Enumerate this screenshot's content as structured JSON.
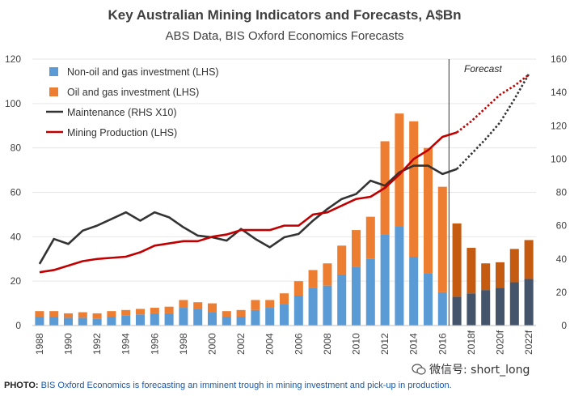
{
  "chart_data": {
    "type": "bar",
    "title": "Key Australian Mining Indicators and Forecasts, A$Bn",
    "subtitle": "ABS Data, BIS Oxford Economics Forecasts",
    "forecast_label": "Forecast",
    "forecast_start_index": 29,
    "categories": [
      "1988",
      "1989",
      "1990",
      "1991",
      "1992",
      "1993",
      "1994",
      "1995",
      "1996",
      "1997",
      "1998",
      "1999",
      "2000",
      "2001",
      "2002",
      "2003",
      "2004",
      "2005",
      "2006",
      "2007",
      "2008",
      "2009",
      "2010",
      "2011",
      "2012",
      "2013",
      "2014",
      "2015",
      "2016",
      "2017",
      "2018f",
      "2019",
      "2020f",
      "2021",
      "2022f"
    ],
    "x_tick_labels": [
      "1988",
      "1990",
      "1992",
      "1994",
      "1996",
      "1998",
      "2000",
      "2002",
      "2004",
      "2006",
      "2008",
      "2010",
      "2012",
      "2014",
      "2016",
      "2018f",
      "2020f",
      "2022f"
    ],
    "ylim_left": [
      0,
      120
    ],
    "yticks_left": [
      "0",
      "20",
      "40",
      "60",
      "80",
      "100",
      "120"
    ],
    "ylim_right": [
      0,
      160
    ],
    "yticks_right": [
      "0",
      "20",
      "40",
      "60",
      "80",
      "100",
      "120",
      "140",
      "160"
    ],
    "colors": {
      "non_oil": "#5b9bd5",
      "oil": "#ed7d31",
      "non_oil_forecast": "#44546a",
      "oil_forecast": "#c55a11",
      "maintenance": "#333333",
      "production": "#c00000"
    },
    "series": [
      {
        "name": "Non-oil and gas investment (LHS)",
        "kind": "bar",
        "axis": "left",
        "values": [
          4,
          4,
          3.5,
          3.5,
          3,
          4,
          4.5,
          5,
          5.5,
          5.5,
          8,
          7.5,
          6,
          4,
          4,
          7,
          8,
          9.5,
          13.5,
          17,
          18,
          23,
          26.5,
          30,
          41,
          44.5,
          31,
          23.5,
          15,
          13,
          14.5,
          16,
          17,
          19.5,
          21
        ]
      },
      {
        "name": "Oil and gas investment (LHS)",
        "kind": "bar",
        "axis": "left",
        "values": [
          2.5,
          2.5,
          2,
          2.5,
          2.5,
          2.5,
          2.5,
          2.5,
          2.5,
          3,
          3.5,
          3,
          4,
          2.5,
          3,
          4.5,
          3.5,
          5,
          6.5,
          8,
          10,
          13,
          16.5,
          19,
          42,
          51,
          61,
          56.5,
          47.5,
          33,
          20.5,
          12,
          11.5,
          15,
          17.5
        ]
      },
      {
        "name": "Maintenance (RHS X10)",
        "kind": "line",
        "axis": "right",
        "values": [
          37,
          52,
          49,
          57,
          60,
          64,
          68,
          63,
          68,
          65,
          59,
          54,
          53,
          51,
          58,
          52,
          47,
          53,
          55,
          63,
          70,
          76,
          79,
          87,
          84,
          92,
          96,
          96,
          91,
          94,
          103,
          112,
          122,
          136,
          151
        ]
      },
      {
        "name": "Mining Production (LHS)",
        "kind": "line",
        "axis": "left",
        "values": [
          24,
          25,
          27,
          29,
          30,
          30.5,
          31,
          33,
          36,
          37,
          38,
          38,
          40,
          41,
          43,
          43,
          43,
          45,
          45,
          50,
          51,
          54,
          57,
          58,
          62,
          68,
          75,
          79,
          85,
          87,
          92,
          98,
          104,
          108,
          113
        ]
      }
    ]
  },
  "caption": {
    "label": "PHOTO:",
    "text": "BIS Oxford Economics is forecasting an imminent trough in mining investment and pick-up in production."
  },
  "watermark": "微信号: short_long"
}
